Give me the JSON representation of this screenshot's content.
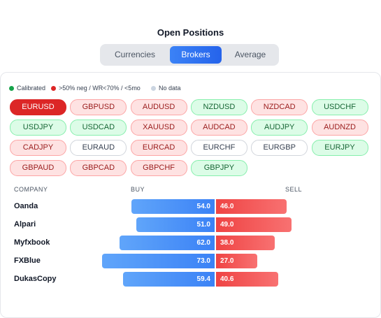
{
  "header": {
    "title": "Open Positions"
  },
  "tabs": [
    {
      "label": "Currencies",
      "active": false
    },
    {
      "label": "Brokers",
      "active": true
    },
    {
      "label": "Average",
      "active": false
    }
  ],
  "legend": [
    {
      "label": "Calibrated",
      "color": "#16a34a"
    },
    {
      "label": ">50% neg / WR<70% / <5mo",
      "color": "#dc2626"
    },
    {
      "label": "No data",
      "color": "#cbd5e1"
    }
  ],
  "pairs": [
    {
      "label": "EURUSD",
      "status": "selected"
    },
    {
      "label": "GBPUSD",
      "status": "neg"
    },
    {
      "label": "AUDUSD",
      "status": "neg"
    },
    {
      "label": "NZDUSD",
      "status": "cal"
    },
    {
      "label": "NZDCAD",
      "status": "neg"
    },
    {
      "label": "USDCHF",
      "status": "cal"
    },
    {
      "label": "USDJPY",
      "status": "cal"
    },
    {
      "label": "USDCAD",
      "status": "cal"
    },
    {
      "label": "XAUUSD",
      "status": "neg"
    },
    {
      "label": "AUDCAD",
      "status": "neg"
    },
    {
      "label": "AUDJPY",
      "status": "cal"
    },
    {
      "label": "AUDNZD",
      "status": "neg"
    },
    {
      "label": "CADJPY",
      "status": "neg"
    },
    {
      "label": "EURAUD",
      "status": "none"
    },
    {
      "label": "EURCAD",
      "status": "neg"
    },
    {
      "label": "EURCHF",
      "status": "none"
    },
    {
      "label": "EURGBP",
      "status": "none"
    },
    {
      "label": "EURJPY",
      "status": "cal"
    },
    {
      "label": "GBPAUD",
      "status": "neg"
    },
    {
      "label": "GBPCAD",
      "status": "neg"
    },
    {
      "label": "GBPCHF",
      "status": "neg"
    },
    {
      "label": "GBPJPY",
      "status": "cal"
    }
  ],
  "table": {
    "headers": [
      "COMPANY",
      "BUY",
      "SELL"
    ],
    "rows": [
      {
        "company": "Oanda",
        "buy": 54.0,
        "buy_label": "54.0",
        "sell": 46.0,
        "sell_label": "46.0"
      },
      {
        "company": "Alpari",
        "buy": 51.0,
        "buy_label": "51.0",
        "sell": 49.0,
        "sell_label": "49.0"
      },
      {
        "company": "Myfxbook",
        "buy": 62.0,
        "buy_label": "62.0",
        "sell": 38.0,
        "sell_label": "38.0"
      },
      {
        "company": "FXBlue",
        "buy": 73.0,
        "buy_label": "73.0",
        "sell": 27.0,
        "sell_label": "27.0"
      },
      {
        "company": "DukasCopy",
        "buy": 59.4,
        "buy_label": "59.4",
        "sell": 40.6,
        "sell_label": "40.6"
      }
    ]
  }
}
